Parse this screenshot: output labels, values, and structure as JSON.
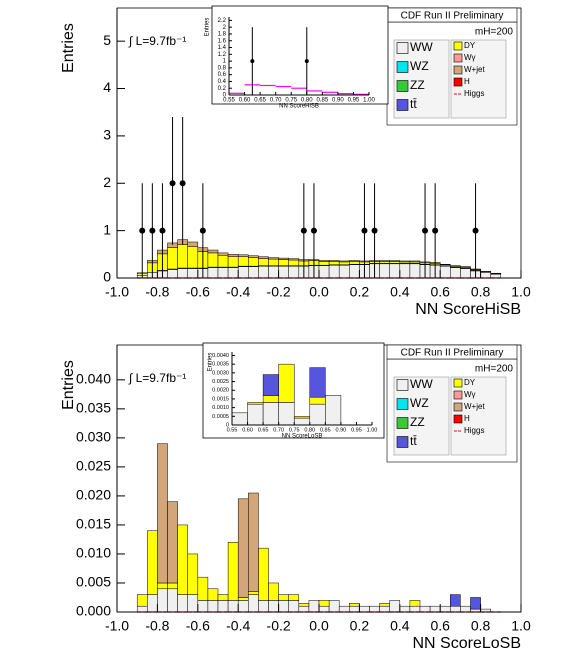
{
  "chart_data": [
    {
      "type": "histogram",
      "title": "CDF Run II Preliminary",
      "subtitle": "mH=200",
      "annotation": "∫ L=9.7fb⁻¹",
      "xlabel": "NN ScoreHiSB",
      "ylabel": "Entries",
      "legend": "upper right",
      "bins": [
        -0.9,
        -0.85,
        -0.8,
        -0.75,
        -0.7,
        -0.65,
        -0.6,
        -0.55,
        -0.5,
        -0.45,
        -0.4,
        -0.35,
        -0.3,
        -0.25,
        -0.2,
        -0.15,
        -0.1,
        -0.05,
        0,
        0.05,
        0.1,
        0.15,
        0.2,
        0.25,
        0.3,
        0.35,
        0.4,
        0.45,
        0.5,
        0.55,
        0.6,
        0.65,
        0.7,
        0.75,
        0.8,
        0.85,
        0.9
      ],
      "series": [
        {
          "name": "WW",
          "color": "#f0f0f0",
          "values": [
            0.05,
            0.12,
            0.15,
            0.18,
            0.2,
            0.2,
            0.2,
            0.22,
            0.22,
            0.22,
            0.24,
            0.24,
            0.25,
            0.25,
            0.25,
            0.25,
            0.25,
            0.26,
            0.26,
            0.27,
            0.27,
            0.28,
            0.28,
            0.3,
            0.3,
            0.3,
            0.3,
            0.3,
            0.28,
            0.27,
            0.25,
            0.22,
            0.2,
            0.15,
            0.12,
            0.08
          ]
        },
        {
          "name": "WZ",
          "color": "#00e5ee",
          "values": [
            0,
            0,
            0,
            0,
            0,
            0,
            0,
            0,
            0,
            0,
            0,
            0,
            0,
            0,
            0,
            0,
            0,
            0,
            0,
            0,
            0,
            0,
            0,
            0,
            0,
            0,
            0,
            0,
            0,
            0,
            0,
            0,
            0,
            0,
            0,
            0
          ]
        },
        {
          "name": "ZZ",
          "color": "#33cc33",
          "values": [
            0,
            0,
            0,
            0,
            0,
            0,
            0,
            0,
            0,
            0,
            0,
            0,
            0,
            0,
            0,
            0,
            0,
            0,
            0,
            0,
            0,
            0,
            0,
            0,
            0,
            0,
            0,
            0,
            0,
            0,
            0,
            0,
            0,
            0,
            0,
            0
          ]
        },
        {
          "name": "tt̄",
          "color": "#5555dd",
          "values": [
            0,
            0,
            0.01,
            0.01,
            0.01,
            0.01,
            0.01,
            0.01,
            0.01,
            0.01,
            0.01,
            0.01,
            0.01,
            0.01,
            0.01,
            0.01,
            0.01,
            0.01,
            0.01,
            0.01,
            0.01,
            0.01,
            0.01,
            0.01,
            0.01,
            0.01,
            0.01,
            0.01,
            0.01,
            0.01,
            0.01,
            0.01,
            0.01,
            0.01,
            0,
            0
          ]
        },
        {
          "name": "DY",
          "color": "#ffff00",
          "values": [
            0.05,
            0.2,
            0.35,
            0.45,
            0.5,
            0.45,
            0.35,
            0.3,
            0.25,
            0.22,
            0.2,
            0.18,
            0.15,
            0.14,
            0.13,
            0.12,
            0.1,
            0.1,
            0.08,
            0.07,
            0.06,
            0.06,
            0.05,
            0.04,
            0.04,
            0.04,
            0.03,
            0.03,
            0.03,
            0.03,
            0.02,
            0.02,
            0.02,
            0.02,
            0.01,
            0.01
          ]
        },
        {
          "name": "Wγ",
          "color": "#ff9999",
          "values": [
            0,
            0,
            0,
            0,
            0,
            0,
            0,
            0,
            0,
            0,
            0,
            0,
            0,
            0,
            0,
            0,
            0,
            0,
            0,
            0,
            0,
            0,
            0,
            0,
            0,
            0,
            0,
            0,
            0,
            0,
            0,
            0,
            0,
            0,
            0,
            0
          ]
        },
        {
          "name": "W+jet",
          "color": "#d2a679",
          "values": [
            0.01,
            0.05,
            0.08,
            0.1,
            0.1,
            0.1,
            0.08,
            0.06,
            0.05,
            0.05,
            0.04,
            0.04,
            0.04,
            0.03,
            0.03,
            0.03,
            0.03,
            0.02,
            0.02,
            0.02,
            0.02,
            0.02,
            0.02,
            0.02,
            0.02,
            0.02,
            0.02,
            0.02,
            0.02,
            0.02,
            0.01,
            0.01,
            0.01,
            0.01,
            0.01,
            0.01
          ]
        },
        {
          "name": "H",
          "color": "#ff0000",
          "values": [
            0,
            0,
            0,
            0,
            0,
            0,
            0,
            0,
            0,
            0,
            0,
            0,
            0,
            0,
            0,
            0,
            0,
            0,
            0,
            0,
            0,
            0,
            0,
            0,
            0,
            0,
            0,
            0,
            0,
            0,
            0,
            0,
            0,
            0,
            0,
            0
          ]
        },
        {
          "name": "Higgs",
          "color": "#ff0000",
          "style": "line",
          "dashed": true,
          "values": [
            0,
            0,
            0,
            0,
            0,
            0,
            0,
            0,
            0,
            0,
            0,
            0,
            0,
            0,
            0,
            0,
            0,
            0,
            0,
            0,
            0,
            0,
            0,
            0,
            0,
            0,
            0,
            0,
            0,
            0,
            0,
            0,
            0,
            0,
            0,
            0
          ]
        }
      ],
      "points": {
        "x": [
          -0.875,
          -0.825,
          -0.775,
          -0.725,
          -0.675,
          -0.575,
          -0.075,
          -0.025,
          0.225,
          0.275,
          0.525,
          0.575,
          0.775
        ],
        "values": [
          1,
          1,
          1,
          2,
          2,
          1,
          1,
          1,
          1,
          1,
          1,
          1,
          1
        ],
        "err_low": [
          1,
          1,
          1,
          1.3,
          1.3,
          1,
          1,
          1,
          1,
          1,
          1,
          1,
          1
        ],
        "err_high": [
          1,
          1,
          1,
          1.4,
          1.4,
          1,
          1,
          1,
          1,
          1,
          1,
          1,
          1
        ]
      },
      "xlim": [
        -1,
        1
      ],
      "ylim": [
        0,
        5.7
      ],
      "xticks": [
        {
          "value": -1,
          "label": "-1.0"
        },
        -0.8,
        -0.6,
        -0.4,
        -0.2,
        {
          "value": 0,
          "label": "0.0"
        },
        0.2,
        0.4,
        0.6,
        0.8,
        {
          "value": 1,
          "label": "1.0"
        }
      ],
      "yticks": [
        0,
        1,
        2,
        3,
        4,
        5
      ]
    },
    {
      "type": "histogram",
      "xlabel": "NN ScoreHiSB",
      "ylabel": "Entries",
      "bins": [
        0.55,
        0.6,
        0.65,
        0.7,
        0.75,
        0.8,
        0.85,
        0.9,
        0.95,
        1.0
      ],
      "series": [
        {
          "color": "#ff00ff",
          "style": "line",
          "values": [
            0.05,
            0.3,
            0.28,
            0.25,
            0.2,
            0.12,
            0.08,
            0.04,
            0.02
          ]
        }
      ],
      "points": {
        "x": [
          0.625,
          0.8
        ],
        "values": [
          1,
          1
        ],
        "err_low": [
          1,
          1
        ],
        "err_high": [
          1,
          1
        ]
      },
      "xlim": [
        0.55,
        1.0
      ],
      "ylim": [
        0,
        2.3
      ],
      "xticks": [
        0.55,
        {
          "value": 0.6,
          "label": "0.60"
        },
        0.65,
        {
          "value": 0.7,
          "label": "0.70"
        },
        0.75,
        {
          "value": 0.8,
          "label": "0.80"
        },
        0.85,
        {
          "value": 0.9,
          "label": "0.90"
        },
        0.95,
        {
          "value": 1.0,
          "label": "1.00"
        }
      ],
      "yticks": [
        0,
        0.2,
        0.4,
        0.6,
        0.8,
        1,
        1.2,
        1.4,
        1.6,
        1.8,
        2,
        2.2
      ]
    },
    {
      "type": "histogram",
      "title": "CDF Run II Preliminary",
      "subtitle": "mH=200",
      "annotation": "∫ L=9.7fb⁻¹",
      "xlabel": "NN ScoreLoSB",
      "ylabel": "Entries",
      "legend": "upper right",
      "bins": [
        -0.9,
        -0.85,
        -0.8,
        -0.75,
        -0.7,
        -0.65,
        -0.6,
        -0.55,
        -0.5,
        -0.45,
        -0.4,
        -0.35,
        -0.3,
        -0.25,
        -0.2,
        -0.15,
        -0.1,
        -0.05,
        0,
        0.05,
        0.1,
        0.15,
        0.2,
        0.25,
        0.3,
        0.35,
        0.4,
        0.45,
        0.5,
        0.55,
        0.6,
        0.65,
        0.7,
        0.75,
        0.8,
        0.85,
        0.9
      ],
      "series": [
        {
          "name": "WW",
          "color": "#f0f0f0",
          "values": [
            0.001,
            0.003,
            0.004,
            0.004,
            0.003,
            0.003,
            0.002,
            0.002,
            0.002,
            0.002,
            0.002,
            0.003,
            0.002,
            0.002,
            0.002,
            0.002,
            0.001,
            0.002,
            0.001,
            0.002,
            0.001,
            0.001,
            0.001,
            0.001,
            0.001,
            0.002,
            0.001,
            0.001,
            0.001,
            0.001,
            0.001,
            0.001,
            0.001,
            0.0005,
            0.0005,
            0
          ]
        },
        {
          "name": "WZ",
          "color": "#00e5ee",
          "values": [
            0,
            0,
            0,
            0,
            0,
            0,
            0,
            0,
            0,
            0,
            0,
            0,
            0,
            0,
            0,
            0,
            0,
            0,
            0,
            0,
            0,
            0,
            0,
            0,
            0,
            0,
            0,
            0,
            0,
            0,
            0,
            0,
            0,
            0,
            0,
            0
          ]
        },
        {
          "name": "ZZ",
          "color": "#33cc33",
          "values": [
            0,
            0,
            0,
            0,
            0,
            0,
            0,
            0,
            0,
            0,
            0,
            0,
            0,
            0,
            0,
            0,
            0,
            0,
            0,
            0,
            0,
            0,
            0,
            0,
            0,
            0,
            0,
            0,
            0,
            0,
            0,
            0,
            0,
            0,
            0,
            0
          ]
        },
        {
          "name": "tt̄",
          "color": "#5555dd",
          "values": [
            0,
            0,
            0,
            0,
            0,
            0,
            0,
            0,
            0,
            0,
            0,
            0,
            0,
            0,
            0,
            0,
            0,
            0,
            0,
            0,
            0,
            0,
            0,
            0,
            0,
            0,
            0,
            0,
            0,
            0,
            0,
            0.002,
            0,
            0.002,
            0,
            0
          ]
        },
        {
          "name": "DY",
          "color": "#ffff00",
          "values": [
            0.002,
            0.011,
            0.001,
            0.001,
            0.012,
            0.007,
            0.004,
            0.002,
            0.001,
            0.01,
            0.0005,
            0.0005,
            0.009,
            0.003,
            0.001,
            0.001,
            0.0005,
            0,
            0.001,
            0,
            0,
            0.0005,
            0,
            0,
            0.0005,
            0,
            0,
            0.001,
            0,
            0,
            0,
            0,
            0,
            0,
            0,
            0
          ]
        },
        {
          "name": "Wγ",
          "color": "#ff9999",
          "values": [
            0,
            0,
            0,
            0,
            0,
            0,
            0,
            0,
            0,
            0,
            0,
            0,
            0,
            0,
            0,
            0,
            0,
            0,
            0,
            0,
            0,
            0,
            0,
            0,
            0,
            0,
            0,
            0,
            0,
            0,
            0,
            0,
            0,
            0,
            0,
            0
          ]
        },
        {
          "name": "W+jet",
          "color": "#d2a679",
          "values": [
            0,
            0,
            0.024,
            0.014,
            0,
            0,
            0,
            0,
            0,
            0,
            0.017,
            0.017,
            0,
            0,
            0,
            0,
            0,
            0,
            0,
            0,
            0,
            0,
            0,
            0,
            0,
            0,
            0,
            0,
            0,
            0,
            0,
            0,
            0,
            0,
            0,
            0
          ]
        },
        {
          "name": "H",
          "color": "#ff0000",
          "values": [
            0,
            0,
            0,
            0,
            0,
            0,
            0,
            0,
            0,
            0,
            0,
            0,
            0,
            0,
            0,
            0,
            0,
            0,
            0,
            0,
            0,
            0,
            0,
            0,
            0,
            0,
            0,
            0,
            0,
            0,
            0,
            0,
            0,
            0,
            0,
            0
          ]
        },
        {
          "name": "Higgs",
          "color": "#ff0000",
          "style": "line",
          "dashed": true,
          "values": [
            0,
            0,
            0,
            0,
            0,
            0,
            0,
            0,
            0,
            0,
            0,
            0,
            0,
            0,
            0,
            0,
            0,
            0,
            0,
            0,
            0,
            0,
            0,
            0,
            0,
            0,
            0,
            0,
            0,
            0,
            0,
            0,
            0,
            0,
            0,
            0
          ]
        }
      ],
      "xlim": [
        -1,
        1
      ],
      "ylim": [
        0,
        0.046
      ],
      "xticks": [
        {
          "value": -1,
          "label": "-1.0"
        },
        -0.8,
        -0.6,
        -0.4,
        -0.2,
        {
          "value": 0,
          "label": "0.0"
        },
        0.2,
        0.4,
        0.6,
        0.8,
        {
          "value": 1,
          "label": "1.0"
        }
      ],
      "yticks": [
        {
          "value": 0,
          "label": "0.000"
        },
        0.005,
        {
          "value": 0.01,
          "label": "0.010"
        },
        0.015,
        {
          "value": 0.02,
          "label": "0.020"
        },
        0.025,
        {
          "value": 0.03,
          "label": "0.030"
        },
        0.035,
        {
          "value": 0.04,
          "label": "0.040"
        }
      ]
    },
    {
      "type": "histogram",
      "xlabel": "NN ScoreLoSB",
      "ylabel": "Entries",
      "bins": [
        0.55,
        0.6,
        0.65,
        0.7,
        0.75,
        0.8,
        0.85,
        0.9
      ],
      "series": [
        {
          "color": "#f0f0f0",
          "values": [
            0.0007,
            0.0012,
            0.0013,
            0.0013,
            0.0004,
            0.0012,
            0.0017
          ]
        },
        {
          "color": "#ffff00",
          "values": [
            0,
            0.0001,
            0.0004,
            0.0022,
            0.0001,
            0.0004,
            0
          ]
        },
        {
          "color": "#5555dd",
          "values": [
            0,
            0,
            0.0012,
            0,
            0,
            0.0017,
            0
          ]
        }
      ],
      "xlim": [
        0.55,
        1.0
      ],
      "ylim": [
        0,
        0.0042
      ],
      "xticks": [
        0.55,
        {
          "value": 0.6,
          "label": "0.60"
        },
        0.65,
        {
          "value": 0.7,
          "label": "0.70"
        },
        0.75,
        {
          "value": 0.8,
          "label": "0.80"
        },
        0.85,
        {
          "value": 0.9,
          "label": "0.90"
        },
        0.95,
        {
          "value": 1.0,
          "label": "1.00"
        }
      ],
      "yticks": [
        {
          "value": 0,
          "label": "0"
        },
        0.0005,
        {
          "value": 0.001,
          "label": "0.0010"
        },
        0.0015,
        {
          "value": 0.002,
          "label": "0.0020"
        },
        0.0025,
        {
          "value": 0.003,
          "label": "0.0030"
        },
        0.0035,
        {
          "value": 0.004,
          "label": "0.0040"
        }
      ]
    }
  ]
}
